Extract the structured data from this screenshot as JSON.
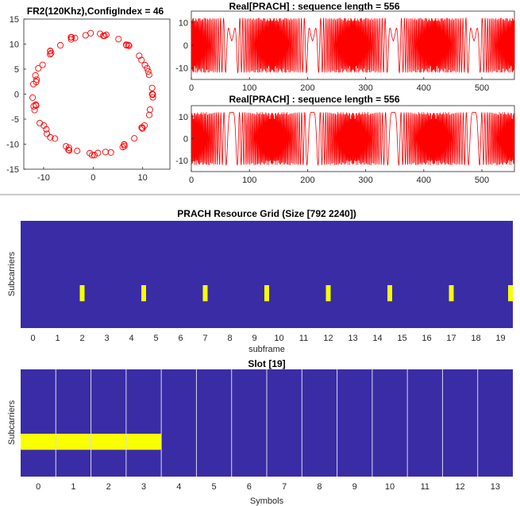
{
  "colors": {
    "signal": "#ff0000",
    "grid_bg": "#3a2ca5",
    "active": "#f7ff00",
    "symbol_line": "#d9d9ee",
    "separator": "#b8b8b8",
    "axis": "#262626"
  },
  "chart_data": [
    {
      "id": "constellation",
      "type": "scatter",
      "title": "FR2(120Khz),ConfigIndex = 46",
      "xlabel": "",
      "ylabel": "",
      "xlim": [
        -14,
        15.5
      ],
      "ylim": [
        -15,
        15
      ],
      "xticks": [
        -10,
        0,
        10
      ],
      "yticks": [
        15,
        10,
        5,
        0,
        -5,
        -10,
        -15
      ],
      "marker": "circle",
      "radius": 12,
      "points_count": 70,
      "grid": false
    },
    {
      "id": "real-prach-1",
      "type": "line",
      "title": "Real[PRACH] : sequence length = 556",
      "xlabel": "",
      "ylabel": "",
      "xlim": [
        0,
        556
      ],
      "ylim": [
        -15,
        15
      ],
      "xticks": [
        0,
        100,
        200,
        300,
        400,
        500
      ],
      "yticks": [
        10,
        0,
        -10
      ],
      "amplitude": 12,
      "grid": false
    },
    {
      "id": "real-prach-2",
      "type": "line",
      "title": "Real[PRACH] : sequence length = 556",
      "xlabel": "",
      "ylabel": "",
      "xlim": [
        0,
        556
      ],
      "ylim": [
        -15,
        15
      ],
      "xticks": [
        0,
        100,
        200,
        300,
        400,
        500
      ],
      "yticks": [
        10,
        0,
        -10
      ],
      "amplitude": 12,
      "grid": false
    },
    {
      "id": "resource-grid",
      "type": "heatmap",
      "title": "PRACH Resource Grid (Size [792 2240])",
      "xlabel": "subframe",
      "ylabel": "Subcarriers",
      "xlim": [
        -0.5,
        19.5
      ],
      "xticks": [
        "0",
        "1",
        "2",
        "3",
        "4",
        "5",
        "6",
        "7",
        "8",
        "9",
        "10",
        "11",
        "12",
        "13",
        "14",
        "15",
        "16",
        "17",
        "18",
        "19"
      ],
      "active_blocks": [
        2.0,
        4.5,
        7.0,
        9.5,
        12.0,
        14.5,
        17.0,
        19.5
      ],
      "active_subcarrier_range_fraction": [
        0.25,
        0.4
      ]
    },
    {
      "id": "slot-grid",
      "type": "heatmap",
      "title": "Slot [19]",
      "xlabel": "Symbols",
      "ylabel": "Subcarriers",
      "xlim": [
        -0.5,
        13.5
      ],
      "xticks": [
        "0",
        "1",
        "2",
        "3",
        "4",
        "5",
        "6",
        "7",
        "8",
        "9",
        "10",
        "11",
        "12",
        "13"
      ],
      "active_symbols": [
        0,
        3
      ],
      "active_subcarrier_range_fraction": [
        0.25,
        0.4
      ]
    }
  ]
}
